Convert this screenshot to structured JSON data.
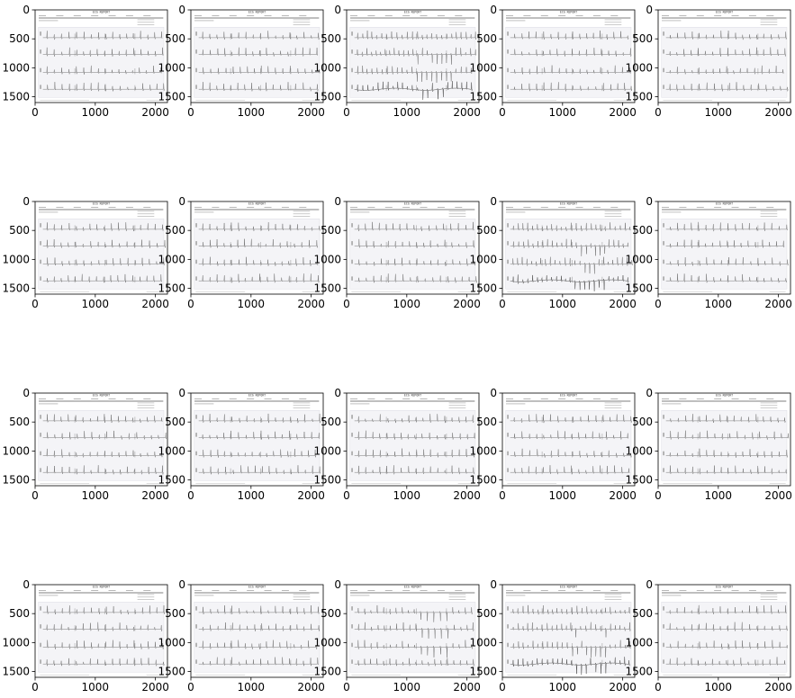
{
  "chart_data": {
    "type": "image-grid",
    "grid": {
      "rows": 4,
      "cols": 5
    },
    "panels_count": 20,
    "content": "12-lead ECG printout images",
    "header_text": "ECG REPORT",
    "axes": {
      "x_ticks": [
        0,
        1000,
        2000
      ],
      "y_ticks": [
        0,
        500,
        1000,
        1500
      ],
      "xlim": [
        0,
        2200
      ],
      "ylim": [
        1600,
        0
      ]
    },
    "panels": [
      {
        "row": 0,
        "col": 0,
        "variant": "normal"
      },
      {
        "row": 0,
        "col": 1,
        "variant": "normal"
      },
      {
        "row": 0,
        "col": 2,
        "variant": "dense"
      },
      {
        "row": 0,
        "col": 3,
        "variant": "normal"
      },
      {
        "row": 0,
        "col": 4,
        "variant": "normal"
      },
      {
        "row": 1,
        "col": 0,
        "variant": "normal"
      },
      {
        "row": 1,
        "col": 1,
        "variant": "normal"
      },
      {
        "row": 1,
        "col": 2,
        "variant": "normal"
      },
      {
        "row": 1,
        "col": 3,
        "variant": "dense"
      },
      {
        "row": 1,
        "col": 4,
        "variant": "normal"
      },
      {
        "row": 2,
        "col": 0,
        "variant": "normal"
      },
      {
        "row": 2,
        "col": 1,
        "variant": "normal"
      },
      {
        "row": 2,
        "col": 2,
        "variant": "normal"
      },
      {
        "row": 2,
        "col": 3,
        "variant": "normal"
      },
      {
        "row": 2,
        "col": 4,
        "variant": "normal"
      },
      {
        "row": 3,
        "col": 0,
        "variant": "normal"
      },
      {
        "row": 3,
        "col": 1,
        "variant": "normal"
      },
      {
        "row": 3,
        "col": 2,
        "variant": "wide-complex"
      },
      {
        "row": 3,
        "col": 3,
        "variant": "dense"
      },
      {
        "row": 3,
        "col": 4,
        "variant": "normal"
      }
    ]
  },
  "colors": {
    "paper": "#f4f4f7",
    "trace": "#6a6a6a",
    "trace_dark": "#404040",
    "frame": "#000000"
  }
}
